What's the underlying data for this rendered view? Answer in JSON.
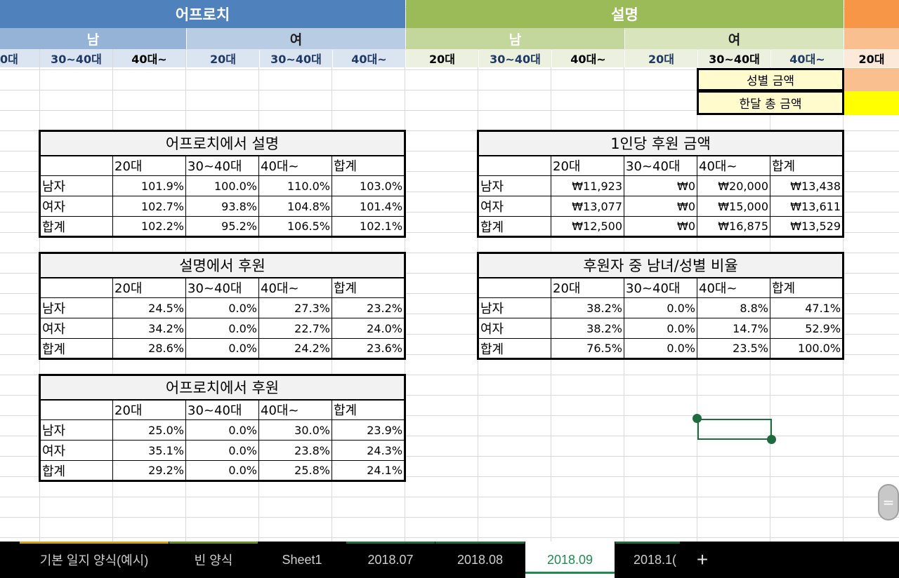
{
  "colors": {
    "approach_main": "#4f81bd",
    "approach_sub": "#95b3d7",
    "approach_age": "#dbe5f1",
    "explain_main": "#9bbb59",
    "explain_sub_male": "#c3d69b",
    "explain_sub_female": "#d7e4bc",
    "explain_age": "#ebf1de",
    "orange": "#f79646",
    "yellow": "#ffff00",
    "active_tab": "#1e8c4e"
  },
  "header": {
    "approach": "어프로치",
    "explain": "설명",
    "male": "남",
    "female": "여",
    "ages_approach": [
      "0대",
      "30~40대",
      "40대~",
      "20대",
      "30~40대",
      "40대~"
    ],
    "ages_explain": [
      "20대",
      "30~40대",
      "40대~",
      "20대",
      "30~40대",
      "40대~",
      "20대"
    ]
  },
  "side_boxes": {
    "gender_amount": "성별 금액",
    "month_total": "한달 총 금액"
  },
  "col_headers": [
    "20대",
    "30~40대",
    "40대~",
    "합계"
  ],
  "row_labels": [
    "남자",
    "여자",
    "합계"
  ],
  "tables": {
    "t1": {
      "title": "어프로치에서 설명",
      "rows": [
        [
          "101.9%",
          "100.0%",
          "110.0%",
          "103.0%"
        ],
        [
          "102.7%",
          "93.8%",
          "104.8%",
          "101.4%"
        ],
        [
          "102.2%",
          "95.2%",
          "106.5%",
          "102.1%"
        ]
      ]
    },
    "t2": {
      "title": "설명에서 후원",
      "rows": [
        [
          "24.5%",
          "0.0%",
          "27.3%",
          "23.2%"
        ],
        [
          "34.2%",
          "0.0%",
          "22.7%",
          "24.0%"
        ],
        [
          "28.6%",
          "0.0%",
          "24.2%",
          "23.6%"
        ]
      ]
    },
    "t3": {
      "title": "어프로치에서 후원",
      "rows": [
        [
          "25.0%",
          "0.0%",
          "30.0%",
          "23.9%"
        ],
        [
          "35.1%",
          "0.0%",
          "23.8%",
          "24.3%"
        ],
        [
          "29.2%",
          "0.0%",
          "25.8%",
          "24.1%"
        ]
      ]
    },
    "t4": {
      "title": "1인당 후원 금액",
      "rows": [
        [
          "₩11,923",
          "₩0",
          "₩20,000",
          "₩13,438"
        ],
        [
          "₩13,077",
          "₩0",
          "₩15,000",
          "₩13,611"
        ],
        [
          "₩12,500",
          "₩0",
          "₩16,875",
          "₩13,529"
        ]
      ]
    },
    "t5": {
      "title": "후원자 중 남녀/성별 비율",
      "rows": [
        [
          "38.2%",
          "0.0%",
          "8.8%",
          "47.1%"
        ],
        [
          "38.2%",
          "0.0%",
          "14.7%",
          "52.9%"
        ],
        [
          "76.5%",
          "0.0%",
          "23.5%",
          "100.0%"
        ]
      ]
    }
  },
  "tabs": [
    {
      "label": "기본 일지 양식(예시)",
      "color": "#d4a017"
    },
    {
      "label": "빈 양식",
      "color": "#6b8e23"
    },
    {
      "label": "Sheet1",
      "color": "#000000"
    },
    {
      "label": "2018.07",
      "color": "#1e6b3e"
    },
    {
      "label": "2018.08",
      "color": "#1e6b3e"
    },
    {
      "label": "2018.09",
      "color": "#1e8c4e"
    },
    {
      "label": "2018.1(",
      "color": "#1e6b3e"
    }
  ],
  "add_sheet": "+",
  "scroll_handle_glyph": "="
}
